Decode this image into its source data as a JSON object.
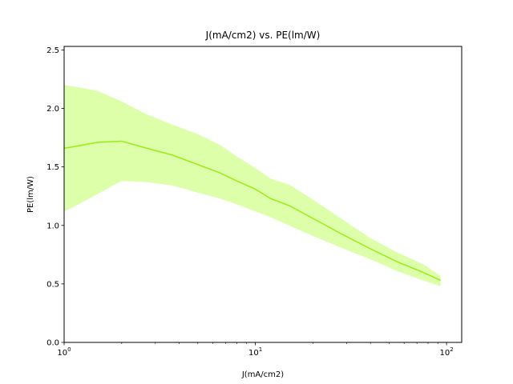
{
  "chart_data": {
    "type": "line",
    "title": "J(mA/cm2) vs. PE(lm/W)",
    "xlabel": "J(mA/cm2)",
    "ylabel": "PE(lm/W)",
    "xscale": "log",
    "xlim": [
      1,
      120
    ],
    "ylim": [
      0,
      2.53
    ],
    "grid": false,
    "x_ticks": [
      {
        "value": 1,
        "base": "10",
        "exp": "0"
      },
      {
        "value": 10,
        "base": "10",
        "exp": "1"
      },
      {
        "value": 100,
        "base": "10",
        "exp": "2"
      }
    ],
    "y_ticks": [
      {
        "value": 0,
        "label": "0.0"
      },
      {
        "value": 0.5,
        "label": "0.5"
      },
      {
        "value": 1.0,
        "label": "1.0"
      },
      {
        "value": 1.5,
        "label": "1.5"
      },
      {
        "value": 2.0,
        "label": "2.0"
      },
      {
        "value": 2.5,
        "label": "2.5"
      }
    ],
    "series": [
      {
        "color": "#99ee11",
        "band_color": "#ddffaa",
        "x": [
          1.0,
          1.1,
          1.5,
          2.0,
          2.7,
          3.7,
          5.0,
          6.5,
          8.0,
          10.0,
          12.0,
          15.0,
          20.0,
          28.0,
          40.0,
          55.0,
          75.0,
          93.0
        ],
        "y": [
          1.66,
          1.67,
          1.71,
          1.72,
          1.66,
          1.6,
          1.52,
          1.45,
          1.38,
          1.31,
          1.23,
          1.17,
          1.06,
          0.93,
          0.8,
          0.69,
          0.6,
          0.53
        ],
        "y_low": [
          1.12,
          1.15,
          1.27,
          1.38,
          1.37,
          1.34,
          1.28,
          1.23,
          1.18,
          1.12,
          1.07,
          1.0,
          0.91,
          0.81,
          0.71,
          0.61,
          0.53,
          0.48
        ],
        "y_high": [
          2.2,
          2.19,
          2.15,
          2.06,
          1.95,
          1.86,
          1.78,
          1.69,
          1.59,
          1.49,
          1.4,
          1.35,
          1.22,
          1.06,
          0.89,
          0.77,
          0.67,
          0.57
        ]
      }
    ]
  }
}
